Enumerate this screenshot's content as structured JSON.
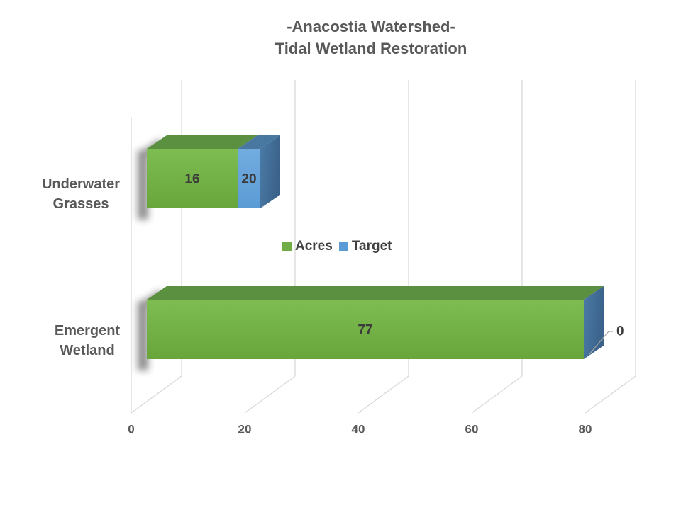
{
  "title": {
    "line1": "-Anacostia Watershed-",
    "line2": "Tidal Wetland Restoration"
  },
  "chart_data": {
    "type": "bar",
    "subtype": "3d-horizontal-stacked",
    "title": "-Anacostia Watershed- Tidal Wetland Restoration",
    "categories": [
      "Underwater Grasses",
      "Emergent Wetland"
    ],
    "category_lines": [
      [
        "Underwater",
        "Grasses"
      ],
      [
        "Emergent",
        "Wetland"
      ]
    ],
    "series": [
      {
        "name": "Acres",
        "color": "#70ad47",
        "values": [
          16,
          77
        ]
      },
      {
        "name": "Target",
        "color": "#5b9bd5",
        "values": [
          20,
          0
        ]
      }
    ],
    "data_labels": {
      "acres": [
        "16",
        "77"
      ],
      "target": [
        "20",
        "0"
      ]
    },
    "xlabel": "",
    "ylabel": "",
    "x_ticks": [
      0,
      20,
      40,
      60,
      80
    ],
    "xlim": [
      0,
      88
    ],
    "grid": true,
    "legend_position": "center",
    "colors": {
      "green_front_light": "#7ebd52",
      "green_front_dark": "#68a63b",
      "green_top": "#5b9040",
      "blue_front_light": "#72acdf",
      "blue_front_dark": "#5b9bd5",
      "blue_top": "#48779f",
      "blue_end_light": "#4a7ba7",
      "blue_end_dark": "#3b628a",
      "gridline": "#d9d9d9",
      "leader_line": "#a6a6a6",
      "axis_text": "#595959",
      "value_text": "#3b3b3b"
    }
  }
}
